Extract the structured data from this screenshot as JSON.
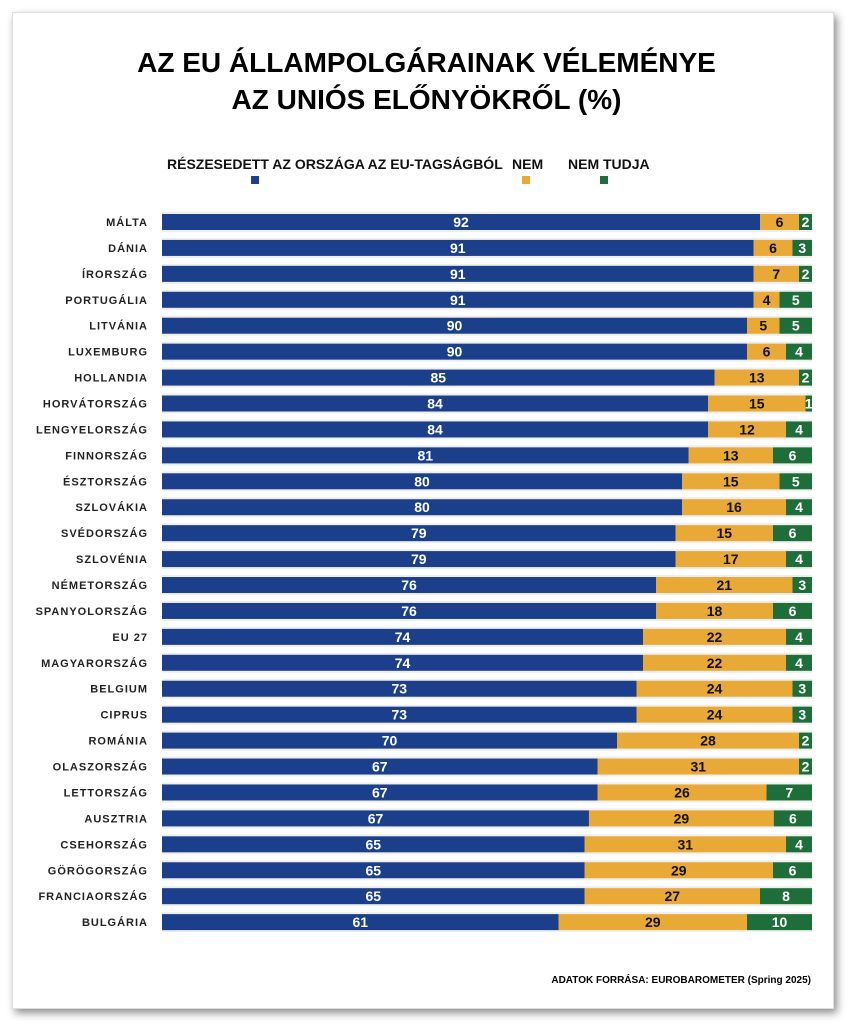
{
  "chart_data": {
    "type": "bar",
    "stacked": true,
    "orientation": "horizontal",
    "title": "AZ EU ÁLLAMPOLGÁRAINAK VÉLEMÉNYE AZ UNIÓS ELŐNYÖKRŐL (%)",
    "title_lines": [
      "AZ EU ÁLLAMPOLGÁRAINAK VÉLEMÉNYE",
      "AZ UNIÓS ELŐNYÖKRŐL (%)"
    ],
    "legend_position": "top",
    "categories": [
      "MÁLTA",
      "DÁNIA",
      "ÍRORSZÁG",
      "PORTUGÁLIA",
      "LITVÁNIA",
      "LUXEMBURG",
      "HOLLANDIA",
      "HORVÁTORSZÁG",
      "LENGYELORSZÁG",
      "FINNORSZÁG",
      "ÉSZTORSZÁG",
      "SZLOVÁKIA",
      "SVÉDORSZÁG",
      "SZLOVÉNIA",
      "NÉMETORSZÁG",
      "SPANYOLORSZÁG",
      "EU 27",
      "MAGYARORSZÁG",
      "BELGIUM",
      "CIPRUS",
      "ROMÁNIA",
      "OLASZORSZÁG",
      "LETTORSZÁG",
      "AUSZTRIA",
      "CSEHORSZÁG",
      "GÖRÖGORSZÁG",
      "FRANCIAORSZÁG",
      "BULGÁRIA"
    ],
    "series": [
      {
        "name": "RÉSZESEDETT AZ ORSZÁGA AZ EU-TAGSÁGBÓL",
        "color": "#1b3f8b",
        "text_color": "#ffffff",
        "values": [
          92,
          91,
          91,
          91,
          90,
          90,
          85,
          84,
          84,
          81,
          80,
          80,
          79,
          79,
          76,
          76,
          74,
          74,
          73,
          73,
          70,
          67,
          67,
          67,
          65,
          65,
          65,
          61
        ]
      },
      {
        "name": "NEM",
        "color": "#e9a936",
        "text_color": "#111111",
        "values": [
          6,
          6,
          7,
          4,
          5,
          6,
          13,
          15,
          12,
          13,
          15,
          16,
          15,
          17,
          21,
          18,
          22,
          22,
          24,
          24,
          28,
          31,
          26,
          29,
          31,
          29,
          27,
          29
        ]
      },
      {
        "name": "NEM TUDJA",
        "color": "#1e6e3a",
        "text_color": "#ffffff",
        "values": [
          2,
          3,
          2,
          5,
          5,
          4,
          2,
          1,
          4,
          6,
          5,
          4,
          6,
          4,
          3,
          6,
          4,
          4,
          3,
          3,
          2,
          2,
          7,
          6,
          4,
          6,
          8,
          10
        ]
      }
    ],
    "source": "ADATOK FORRÁSA: EUROBAROMETER (Spring 2025)"
  }
}
